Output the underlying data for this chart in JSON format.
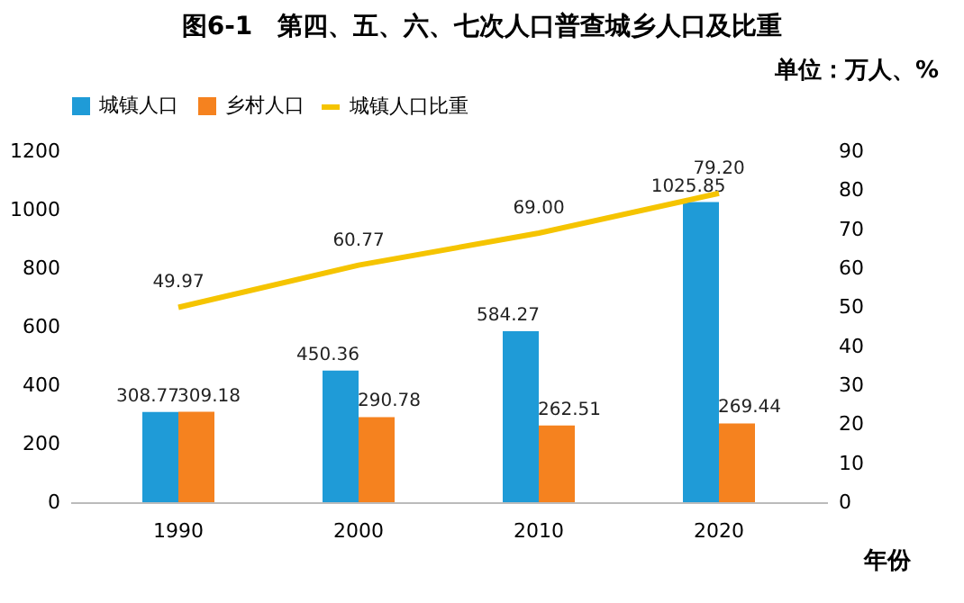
{
  "chart_data": {
    "type": "bar",
    "title": "图6-1　第四、五、六、七次人口普查城乡人口及比重",
    "subtitle": "单位：万人、%",
    "xlabel": "年份",
    "categories": [
      "1990",
      "2000",
      "2010",
      "2020"
    ],
    "series": [
      {
        "name": "城镇人口",
        "color": "#1f9bd7",
        "values": [
          308.77,
          450.36,
          584.27,
          1025.85
        ]
      },
      {
        "name": "乡村人口",
        "color": "#f5821f",
        "values": [
          309.18,
          290.78,
          262.51,
          269.44
        ]
      },
      {
        "name": "城镇人口比重",
        "type": "line",
        "axis": "y2",
        "color": "#f5c400",
        "values": [
          49.97,
          60.77,
          69.0,
          79.2
        ],
        "value_labels": [
          "49.97",
          "60.77",
          "69.00",
          "79.20"
        ]
      }
    ],
    "ylim": [
      0,
      1200
    ],
    "yticks": [
      0,
      200,
      400,
      600,
      800,
      1000,
      1200
    ],
    "y2lim": [
      0,
      90
    ],
    "y2ticks": [
      0,
      10,
      20,
      30,
      40,
      50,
      60,
      70,
      80,
      90
    ],
    "data_labels": true,
    "grid": false,
    "legend": "top"
  }
}
